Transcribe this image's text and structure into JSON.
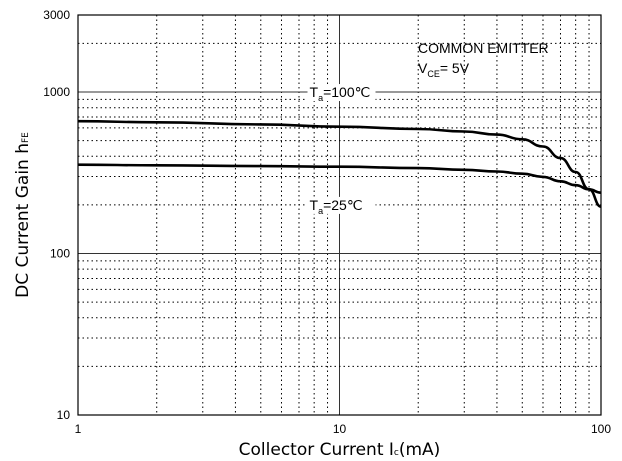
{
  "chart_data": {
    "type": "line",
    "x_scale": "log",
    "y_scale": "log",
    "xlim": [
      1,
      100
    ],
    "ylim": [
      10,
      3000
    ],
    "xticks": [
      {
        "value": 1,
        "label": "1"
      },
      {
        "value": 10,
        "label": "10"
      },
      {
        "value": 100,
        "label": "100"
      }
    ],
    "yticks": [
      {
        "value": 10,
        "label": "10"
      },
      {
        "value": 100,
        "label": "100"
      },
      {
        "value": 1000,
        "label": "1000"
      },
      {
        "value": 3000,
        "label": "3000"
      }
    ],
    "xlabel": {
      "main": "Collector Current I",
      "sub": "c",
      "unit": "(mA)"
    },
    "ylabel": {
      "main": "DC Current Gain h",
      "sub": "FE"
    },
    "grid": true,
    "annotations": {
      "condition_line1": "COMMON EMITTER",
      "condition_v": "V",
      "condition_sub": "CE",
      "condition_value": "= 5V"
    },
    "series": [
      {
        "label": {
          "t": "T",
          "sub": "a",
          "value": "=100℃"
        },
        "label_anchor": {
          "x": 10,
          "y": 1000
        },
        "points": [
          [
            1,
            660
          ],
          [
            2,
            650
          ],
          [
            5,
            630
          ],
          [
            10,
            610
          ],
          [
            20,
            590
          ],
          [
            30,
            570
          ],
          [
            40,
            545
          ],
          [
            50,
            510
          ],
          [
            60,
            460
          ],
          [
            70,
            390
          ],
          [
            80,
            320
          ],
          [
            90,
            250
          ],
          [
            100,
            195
          ]
        ]
      },
      {
        "label": {
          "t": "T",
          "sub": "a",
          "value": "=25℃"
        },
        "label_anchor": {
          "x": 10,
          "y": 200
        },
        "points": [
          [
            1,
            355
          ],
          [
            2,
            352
          ],
          [
            5,
            348
          ],
          [
            10,
            345
          ],
          [
            20,
            338
          ],
          [
            30,
            330
          ],
          [
            40,
            322
          ],
          [
            50,
            312
          ],
          [
            60,
            298
          ],
          [
            70,
            280
          ],
          [
            80,
            265
          ],
          [
            90,
            250
          ],
          [
            100,
            238
          ]
        ]
      }
    ]
  }
}
